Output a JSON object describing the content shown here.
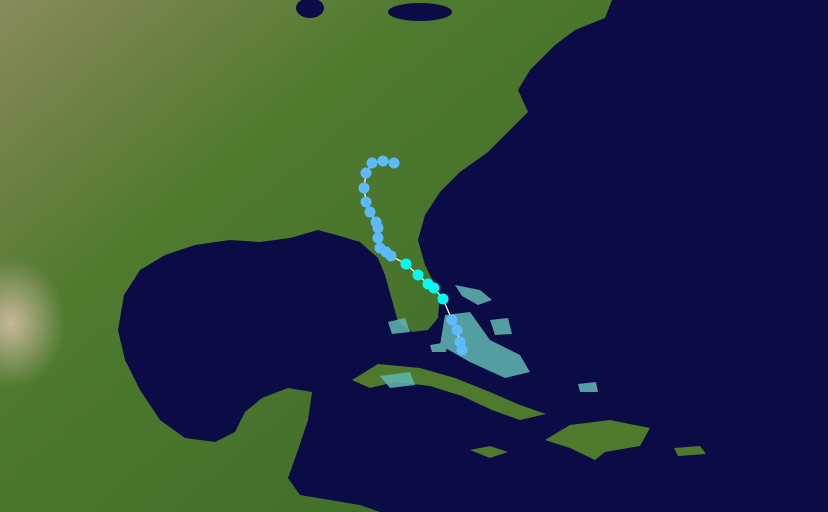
{
  "map": {
    "track_colors": {
      "depression": "#5ebaff",
      "storm": "#00faf4"
    }
  }
}
